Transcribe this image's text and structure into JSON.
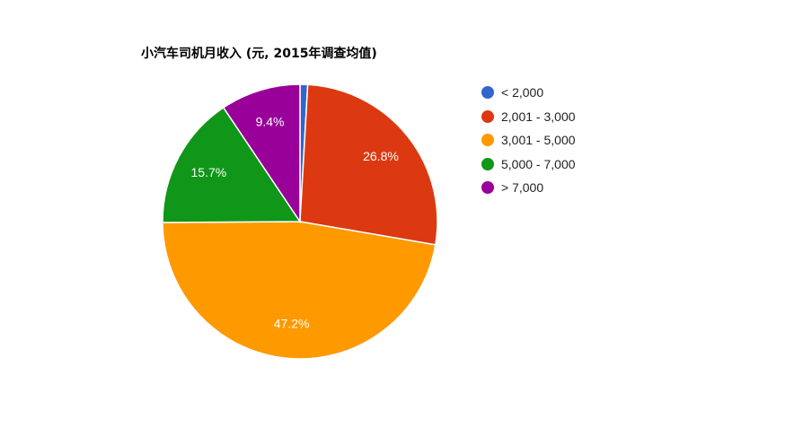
{
  "chart_data": {
    "type": "pie",
    "title": "小汽车司机月收入 (元, 2015年调查均值)",
    "legend_position": "right",
    "slices": [
      {
        "label": "< 2,000",
        "value": 0.9,
        "color": "#3366cc",
        "data_label": ""
      },
      {
        "label": "2,001 - 3,000",
        "value": 26.8,
        "color": "#dc3912",
        "data_label": "26.8%"
      },
      {
        "label": "3,001 - 5,000",
        "value": 47.2,
        "color": "#ff9900",
        "data_label": "47.2%"
      },
      {
        "label": "5,000 - 7,000",
        "value": 15.7,
        "color": "#109618",
        "data_label": "15.7%"
      },
      {
        "label": "> 7,000",
        "value": 9.4,
        "color": "#990099",
        "data_label": "9.4%"
      }
    ]
  }
}
